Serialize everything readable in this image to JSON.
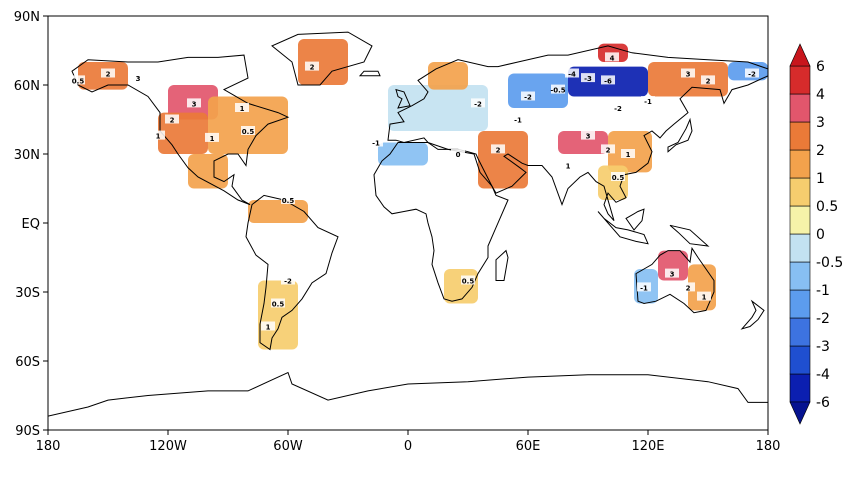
{
  "chart_data": {
    "type": "heatmap",
    "projection": "cylindrical equidistant (lat-lon)",
    "xlim": [
      -180,
      180
    ],
    "ylim": [
      -90,
      90
    ],
    "x_ticks": [
      {
        "value": -180,
        "label": "180"
      },
      {
        "value": -120,
        "label": "120W"
      },
      {
        "value": -60,
        "label": "60W"
      },
      {
        "value": 0,
        "label": "0"
      },
      {
        "value": 60,
        "label": "60E"
      },
      {
        "value": 120,
        "label": "120E"
      },
      {
        "value": 180,
        "label": "180"
      }
    ],
    "y_ticks": [
      {
        "value": 90,
        "label": "90N"
      },
      {
        "value": 60,
        "label": "60N"
      },
      {
        "value": 30,
        "label": "30N"
      },
      {
        "value": 0,
        "label": "EQ"
      },
      {
        "value": -30,
        "label": "30S"
      },
      {
        "value": -60,
        "label": "60S"
      },
      {
        "value": -90,
        "label": "90S"
      }
    ],
    "colorbar": {
      "levels": [
        "-6",
        "-4",
        "-3",
        "-2",
        "-1",
        "-0.5",
        "0",
        "0.5",
        "1",
        "2",
        "3",
        "4",
        "6"
      ],
      "colors": [
        "#0b1fb0",
        "#1f4fd0",
        "#3d73e0",
        "#5c9cee",
        "#87bff2",
        "#c3e2f1",
        "#f6f3a9",
        "#f6cd6e",
        "#f3a24c",
        "#ea7a38",
        "#e2566c",
        "#d62b2b"
      ],
      "end_arrows": true
    },
    "contour_levels": [
      -6,
      -4,
      -3,
      -2,
      -1,
      -0.5,
      0,
      0.5,
      1,
      2,
      3,
      4,
      6
    ],
    "regions": [
      {
        "area": "Alaska",
        "lon": [
          -165,
          -140
        ],
        "lat": [
          58,
          70
        ],
        "value": 2
      },
      {
        "area": "Canada prairies",
        "lon": [
          -120,
          -95
        ],
        "lat": [
          45,
          60
        ],
        "value": 3.5
      },
      {
        "area": "Western United States",
        "lon": [
          -125,
          -100
        ],
        "lat": [
          30,
          48
        ],
        "value": 2
      },
      {
        "area": "Eastern United States",
        "lon": [
          -100,
          -60
        ],
        "lat": [
          30,
          55
        ],
        "value": 1.5
      },
      {
        "area": "Mexico",
        "lon": [
          -110,
          -90
        ],
        "lat": [
          15,
          30
        ],
        "value": 1
      },
      {
        "area": "Greenland",
        "lon": [
          -55,
          -30
        ],
        "lat": [
          60,
          80
        ],
        "value": 2
      },
      {
        "area": "Northern South America",
        "lon": [
          -80,
          -50
        ],
        "lat": [
          0,
          10
        ],
        "value": 1
      },
      {
        "area": "Southern South America",
        "lon": [
          -75,
          -55
        ],
        "lat": [
          -55,
          -25
        ],
        "value": 0.5
      },
      {
        "area": "North Africa",
        "lon": [
          -15,
          10
        ],
        "lat": [
          25,
          35
        ],
        "value": -1
      },
      {
        "area": "Europe",
        "lon": [
          -10,
          40
        ],
        "lat": [
          40,
          60
        ],
        "value": -0.5
      },
      {
        "area": "Scandinavia",
        "lon": [
          10,
          30
        ],
        "lat": [
          58,
          70
        ],
        "value": 1
      },
      {
        "area": "Middle East",
        "lon": [
          35,
          60
        ],
        "lat": [
          15,
          40
        ],
        "value": 2
      },
      {
        "area": "Southern Africa",
        "lon": [
          18,
          35
        ],
        "lat": [
          -35,
          -20
        ],
        "value": 0.5
      },
      {
        "area": "Central Siberia",
        "lon": [
          80,
          120
        ],
        "lat": [
          55,
          68
        ],
        "value": -6
      },
      {
        "area": "Western Siberia",
        "lon": [
          50,
          80
        ],
        "lat": [
          50,
          65
        ],
        "value": -2
      },
      {
        "area": "Taymyr coast",
        "lon": [
          95,
          110
        ],
        "lat": [
          70,
          78
        ],
        "value": 4
      },
      {
        "area": "Tibetan Plateau",
        "lon": [
          75,
          100
        ],
        "lat": [
          30,
          40
        ],
        "value": 3
      },
      {
        "area": "China",
        "lon": [
          100,
          122
        ],
        "lat": [
          22,
          40
        ],
        "value": 1
      },
      {
        "area": "Southeast Asia",
        "lon": [
          95,
          110
        ],
        "lat": [
          10,
          25
        ],
        "value": 0.5
      },
      {
        "area": "Eastern Siberia",
        "lon": [
          120,
          160
        ],
        "lat": [
          55,
          70
        ],
        "value": 2
      },
      {
        "area": "Chukotka",
        "lon": [
          160,
          180
        ],
        "lat": [
          62,
          70
        ],
        "value": -2
      },
      {
        "area": "Western Australia",
        "lon": [
          113,
          125
        ],
        "lat": [
          -35,
          -20
        ],
        "value": -1
      },
      {
        "area": "Northern Australia",
        "lon": [
          125,
          140
        ],
        "lat": [
          -25,
          -12
        ],
        "value": 3
      },
      {
        "area": "Eastern Australia",
        "lon": [
          140,
          154
        ],
        "lat": [
          -38,
          -18
        ],
        "value": 1
      }
    ],
    "contour_labels": [
      {
        "text": "2",
        "lon": -150,
        "lat": 65
      },
      {
        "text": "3",
        "lon": -135,
        "lat": 63
      },
      {
        "text": "0.5",
        "lon": -165,
        "lat": 62
      },
      {
        "text": "3",
        "lon": -107,
        "lat": 52
      },
      {
        "text": "2",
        "lon": -118,
        "lat": 45
      },
      {
        "text": "1",
        "lon": -125,
        "lat": 38
      },
      {
        "text": "1",
        "lon": -98,
        "lat": 37
      },
      {
        "text": "0.5",
        "lon": -80,
        "lat": 40
      },
      {
        "text": "1",
        "lon": -83,
        "lat": 50
      },
      {
        "text": "2",
        "lon": -48,
        "lat": 68
      },
      {
        "text": "0.5",
        "lon": -60,
        "lat": 10
      },
      {
        "text": "-1",
        "lon": -16,
        "lat": 35
      },
      {
        "text": "-2",
        "lon": 35,
        "lat": 52
      },
      {
        "text": "-1",
        "lon": 55,
        "lat": 45
      },
      {
        "text": "2",
        "lon": 45,
        "lat": 32
      },
      {
        "text": "0",
        "lon": 25,
        "lat": 30
      },
      {
        "text": "-2",
        "lon": 60,
        "lat": 55
      },
      {
        "text": "-3",
        "lon": 90,
        "lat": 63
      },
      {
        "text": "-6",
        "lon": 100,
        "lat": 62
      },
      {
        "text": "-4",
        "lon": 82,
        "lat": 65
      },
      {
        "text": "-0.5",
        "lon": 75,
        "lat": 58
      },
      {
        "text": "-2",
        "lon": 105,
        "lat": 50
      },
      {
        "text": "-1",
        "lon": 120,
        "lat": 53
      },
      {
        "text": "4",
        "lon": 102,
        "lat": 72
      },
      {
        "text": "3",
        "lon": 140,
        "lat": 65
      },
      {
        "text": "2",
        "lon": 150,
        "lat": 62
      },
      {
        "text": "-2",
        "lon": 172,
        "lat": 65
      },
      {
        "text": "3",
        "lon": 90,
        "lat": 38
      },
      {
        "text": "2",
        "lon": 100,
        "lat": 32
      },
      {
        "text": "1",
        "lon": 110,
        "lat": 30
      },
      {
        "text": "0.5",
        "lon": 105,
        "lat": 20
      },
      {
        "text": "1",
        "lon": 80,
        "lat": 25
      },
      {
        "text": "0.5",
        "lon": 30,
        "lat": -25
      },
      {
        "text": "-2",
        "lon": -60,
        "lat": -25
      },
      {
        "text": "0.5",
        "lon": -65,
        "lat": -35
      },
      {
        "text": "1",
        "lon": -70,
        "lat": -45
      },
      {
        "text": "-1",
        "lon": 118,
        "lat": -28
      },
      {
        "text": "3",
        "lon": 132,
        "lat": -22
      },
      {
        "text": "2",
        "lon": 140,
        "lat": -28
      },
      {
        "text": "1",
        "lon": 148,
        "lat": -32
      }
    ],
    "title": "",
    "xlabel": "",
    "ylabel": "",
    "grid": false
  }
}
